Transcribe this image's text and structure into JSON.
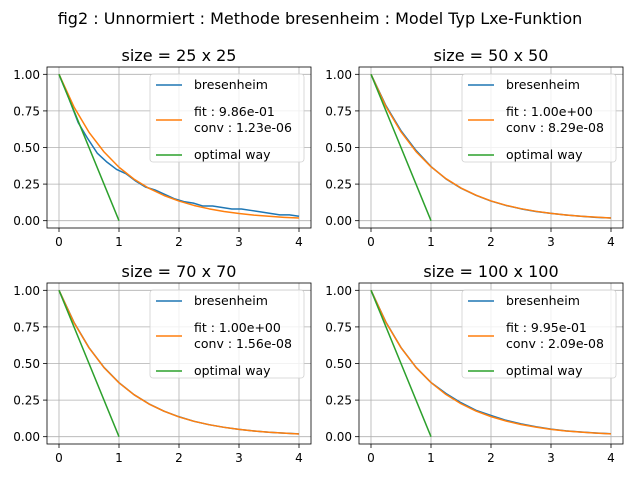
{
  "figure": {
    "suptitle": "fig2 : Unnormiert : Methode bresenheim : Model Typ Lxe-Funktion"
  },
  "colors": {
    "bresenheim": "#1f77b4",
    "fit": "#ff7f0e",
    "optimal": "#2ca02c",
    "grid": "#b0b0b0",
    "axes": "#000000"
  },
  "chart_data": [
    {
      "type": "line",
      "title": "size = 25 x 25",
      "xlim": [
        -0.2,
        4.2
      ],
      "ylim": [
        -0.05,
        1.05
      ],
      "xticks": [
        0,
        1,
        2,
        3,
        4
      ],
      "yticks": [
        0.0,
        0.25,
        0.5,
        0.75,
        1.0
      ],
      "xtick_labels": [
        "0",
        "1",
        "2",
        "3",
        "4"
      ],
      "ytick_labels": [
        "0.00",
        "0.25",
        "0.50",
        "0.75",
        "1.00"
      ],
      "grid": true,
      "legend": "upper right",
      "series": [
        {
          "name": "bresenheim",
          "x": [
            0,
            0.16,
            0.32,
            0.48,
            0.64,
            0.8,
            0.96,
            1.12,
            1.28,
            1.44,
            1.6,
            1.76,
            1.92,
            2.08,
            2.24,
            2.4,
            2.56,
            2.72,
            2.88,
            3.04,
            3.2,
            3.36,
            3.52,
            3.68,
            3.84,
            4.0
          ],
          "y": [
            1.0,
            0.84,
            0.67,
            0.56,
            0.46,
            0.4,
            0.35,
            0.32,
            0.27,
            0.23,
            0.21,
            0.18,
            0.15,
            0.13,
            0.12,
            0.1,
            0.1,
            0.09,
            0.08,
            0.08,
            0.07,
            0.06,
            0.05,
            0.04,
            0.04,
            0.03
          ]
        },
        {
          "name": "fit : 9.86e-01\nconv : 1.23e-06",
          "x": [
            0,
            0.25,
            0.5,
            0.75,
            1.0,
            1.25,
            1.5,
            1.75,
            2.0,
            2.25,
            2.5,
            2.75,
            3.0,
            3.25,
            3.5,
            3.75,
            4.0
          ],
          "y": [
            1.0,
            0.777,
            0.604,
            0.47,
            0.365,
            0.284,
            0.221,
            0.172,
            0.134,
            0.104,
            0.081,
            0.063,
            0.049,
            0.038,
            0.03,
            0.023,
            0.018
          ]
        },
        {
          "name": "optimal way",
          "x": [
            0,
            1
          ],
          "y": [
            1,
            0
          ]
        }
      ]
    },
    {
      "type": "line",
      "title": "size = 50 x 50",
      "xlim": [
        -0.2,
        4.2
      ],
      "ylim": [
        -0.05,
        1.05
      ],
      "xticks": [
        0,
        1,
        2,
        3,
        4
      ],
      "yticks": [
        0.0,
        0.25,
        0.5,
        0.75,
        1.0
      ],
      "xtick_labels": [
        "0",
        "1",
        "2",
        "3",
        "4"
      ],
      "ytick_labels": [
        "0.00",
        "0.25",
        "0.50",
        "0.75",
        "1.00"
      ],
      "grid": true,
      "legend": "upper right",
      "series": [
        {
          "name": "bresenheim",
          "x": [
            0,
            0.25,
            0.5,
            0.75,
            1.0,
            1.25,
            1.5,
            1.75,
            2.0,
            2.25,
            2.5,
            2.75,
            3.0,
            3.25,
            3.5,
            3.75,
            4.0
          ],
          "y": [
            1.0,
            0.785,
            0.615,
            0.48,
            0.37,
            0.285,
            0.222,
            0.173,
            0.134,
            0.104,
            0.081,
            0.063,
            0.05,
            0.039,
            0.03,
            0.023,
            0.018
          ]
        },
        {
          "name": "fit : 1.00e+00\nconv : 8.29e-08",
          "x": [
            0,
            0.25,
            0.5,
            0.75,
            1.0,
            1.25,
            1.5,
            1.75,
            2.0,
            2.25,
            2.5,
            2.75,
            3.0,
            3.25,
            3.5,
            3.75,
            4.0
          ],
          "y": [
            1.0,
            0.779,
            0.607,
            0.472,
            0.368,
            0.287,
            0.223,
            0.174,
            0.135,
            0.105,
            0.082,
            0.064,
            0.05,
            0.039,
            0.03,
            0.024,
            0.018
          ]
        },
        {
          "name": "optimal way",
          "x": [
            0,
            1
          ],
          "y": [
            1,
            0
          ]
        }
      ]
    },
    {
      "type": "line",
      "title": "size = 70 x 70",
      "xlim": [
        -0.2,
        4.2
      ],
      "ylim": [
        -0.05,
        1.05
      ],
      "xticks": [
        0,
        1,
        2,
        3,
        4
      ],
      "yticks": [
        0.0,
        0.25,
        0.5,
        0.75,
        1.0
      ],
      "xtick_labels": [
        "0",
        "1",
        "2",
        "3",
        "4"
      ],
      "ytick_labels": [
        "0.00",
        "0.25",
        "0.50",
        "0.75",
        "1.00"
      ],
      "grid": true,
      "legend": "upper right",
      "series": [
        {
          "name": "bresenheim",
          "x": [
            0,
            0.25,
            0.5,
            0.75,
            1.0,
            1.25,
            1.5,
            1.75,
            2.0,
            2.25,
            2.5,
            2.75,
            3.0,
            3.25,
            3.5,
            3.75,
            4.0
          ],
          "y": [
            1.0,
            0.781,
            0.608,
            0.473,
            0.369,
            0.287,
            0.224,
            0.174,
            0.136,
            0.105,
            0.082,
            0.064,
            0.05,
            0.039,
            0.03,
            0.024,
            0.019
          ]
        },
        {
          "name": "fit : 1.00e+00\nconv : 1.56e-08",
          "x": [
            0,
            0.25,
            0.5,
            0.75,
            1.0,
            1.25,
            1.5,
            1.75,
            2.0,
            2.25,
            2.5,
            2.75,
            3.0,
            3.25,
            3.5,
            3.75,
            4.0
          ],
          "y": [
            1.0,
            0.779,
            0.607,
            0.472,
            0.368,
            0.287,
            0.223,
            0.174,
            0.135,
            0.105,
            0.082,
            0.064,
            0.05,
            0.039,
            0.03,
            0.024,
            0.018
          ]
        },
        {
          "name": "optimal way",
          "x": [
            0,
            1
          ],
          "y": [
            1,
            0
          ]
        }
      ]
    },
    {
      "type": "line",
      "title": "size = 100 x 100",
      "xlim": [
        -0.2,
        4.2
      ],
      "ylim": [
        -0.05,
        1.05
      ],
      "xticks": [
        0,
        1,
        2,
        3,
        4
      ],
      "yticks": [
        0.0,
        0.25,
        0.5,
        0.75,
        1.0
      ],
      "xtick_labels": [
        "0",
        "1",
        "2",
        "3",
        "4"
      ],
      "ytick_labels": [
        "0.00",
        "0.25",
        "0.50",
        "0.75",
        "1.00"
      ],
      "grid": true,
      "legend": "upper right",
      "series": [
        {
          "name": "bresenheim",
          "x": [
            0,
            0.25,
            0.5,
            0.75,
            1.0,
            1.25,
            1.5,
            1.75,
            2.0,
            2.25,
            2.5,
            2.75,
            3.0,
            3.25,
            3.5,
            3.75,
            4.0
          ],
          "y": [
            1.0,
            0.782,
            0.609,
            0.474,
            0.37,
            0.295,
            0.232,
            0.18,
            0.145,
            0.112,
            0.088,
            0.068,
            0.052,
            0.04,
            0.032,
            0.025,
            0.02
          ]
        },
        {
          "name": "fit : 9.95e-01\nconv : 2.09e-08",
          "x": [
            0,
            0.25,
            0.5,
            0.75,
            1.0,
            1.25,
            1.5,
            1.75,
            2.0,
            2.25,
            2.5,
            2.75,
            3.0,
            3.25,
            3.5,
            3.75,
            4.0
          ],
          "y": [
            1.0,
            0.78,
            0.608,
            0.474,
            0.37,
            0.288,
            0.225,
            0.175,
            0.137,
            0.107,
            0.083,
            0.065,
            0.05,
            0.039,
            0.031,
            0.024,
            0.019
          ]
        },
        {
          "name": "optimal way",
          "x": [
            0,
            1
          ],
          "y": [
            1,
            0
          ]
        }
      ]
    }
  ]
}
